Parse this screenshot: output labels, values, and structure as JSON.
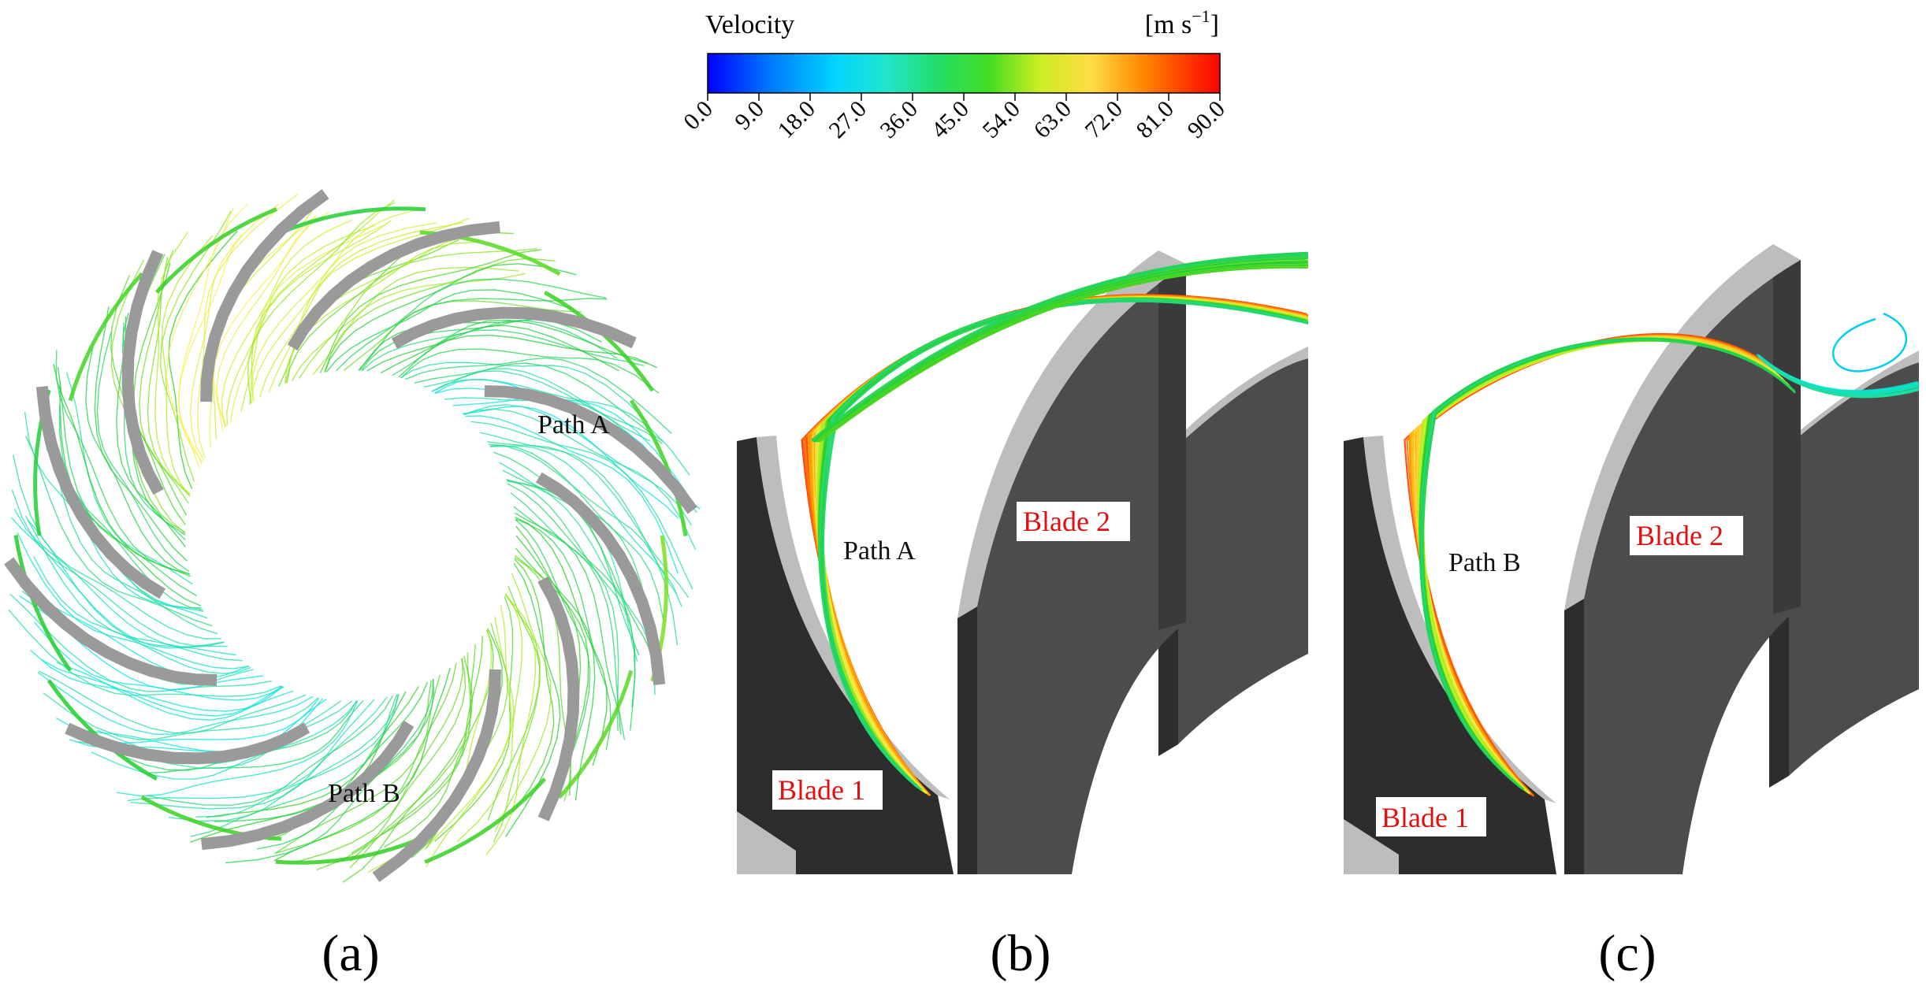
{
  "colorbar": {
    "title": "Velocity",
    "unit_base": "[m s",
    "unit_exp": "−1",
    "unit_close": "]",
    "ticks": [
      "0.0",
      "9.0",
      "18.0",
      "27.0",
      "36.0",
      "45.0",
      "54.0",
      "63.0",
      "72.0",
      "81.0",
      "90.0"
    ],
    "range": [
      0,
      90
    ],
    "stops": [
      "#0000ff",
      "#00aaff",
      "#00e5e5",
      "#22dd99",
      "#22cc22",
      "#bbee22",
      "#ffee55",
      "#ffaa00",
      "#ff5500",
      "#ff0000"
    ]
  },
  "panels": {
    "a": {
      "caption": "(a)",
      "path_a": "Path A",
      "path_b": "Path B",
      "blade_count": 12
    },
    "b": {
      "caption": "(b)",
      "path_label": "Path A",
      "blade1": "Blade 1",
      "blade2": "Blade 2"
    },
    "c": {
      "caption": "(c)",
      "path_label": "Path B",
      "blade1": "Blade 1",
      "blade2": "Blade 2"
    }
  },
  "colors": {
    "blade": "#9a9a9a",
    "blade_dark": "#2d2d2d",
    "blade_face": "#4a4a4a",
    "blade_edge": "#bdbdbd",
    "label_red": "#e01010"
  }
}
